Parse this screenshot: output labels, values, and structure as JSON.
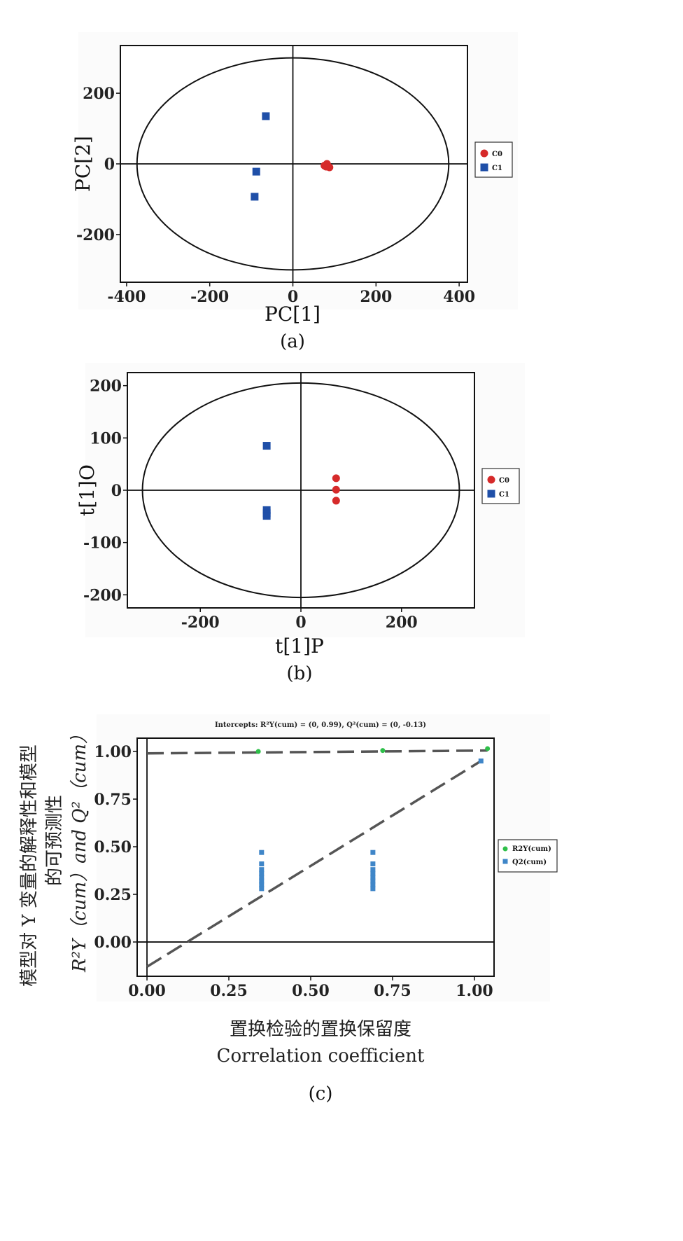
{
  "colors": {
    "c0": "#d62a2a",
    "c1": "#1f4fa8",
    "r2y": "#2fbf4a",
    "q2": "#3f86c8",
    "dash": "#555555"
  },
  "chart_data": [
    {
      "type": "scatter",
      "panel": "(a)",
      "xlabel": "PC[1]",
      "ylabel": "PC[2]",
      "xlim": [
        -415,
        420
      ],
      "ylim": [
        -335,
        335
      ],
      "xticks": [
        -400,
        -200,
        0,
        200,
        400
      ],
      "yticks": [
        200,
        0,
        -200
      ],
      "xtick_labels": [
        "-400",
        "-200",
        "0",
        "200",
        "400"
      ],
      "ytick_labels": [
        "200",
        "0",
        "-200"
      ],
      "ellipse": {
        "rx": 375,
        "ry": 300
      },
      "legend": [
        "C0",
        "C1"
      ],
      "series": [
        {
          "name": "C0",
          "marker": "circle",
          "points": [
            [
              76,
              -5
            ],
            [
              82,
              0
            ],
            [
              88,
              -10
            ],
            [
              80,
              -8
            ]
          ]
        },
        {
          "name": "C1",
          "marker": "square",
          "points": [
            [
              -65,
              135
            ],
            [
              -88,
              -22
            ],
            [
              -92,
              -93
            ]
          ]
        }
      ]
    },
    {
      "type": "scatter",
      "panel": "(b)",
      "xlabel": "t[1]P",
      "ylabel": "t[1]O",
      "xlim": [
        -345,
        345
      ],
      "ylim": [
        -225,
        225
      ],
      "xticks": [
        -200,
        0,
        200
      ],
      "yticks": [
        200,
        100,
        0,
        -100,
        -200
      ],
      "xtick_labels": [
        "-200",
        "0",
        "200"
      ],
      "ytick_labels": [
        "200",
        "100",
        "0",
        "-100",
        "-200"
      ],
      "ellipse": {
        "rx": 315,
        "ry": 205
      },
      "legend": [
        "C0",
        "C1"
      ],
      "series": [
        {
          "name": "C0",
          "marker": "circle",
          "points": [
            [
              70,
              23
            ],
            [
              70,
              1
            ],
            [
              70,
              -20
            ]
          ]
        },
        {
          "name": "C1",
          "marker": "square",
          "points": [
            [
              -68,
              85
            ],
            [
              -68,
              -38
            ],
            [
              -68,
              -44
            ],
            [
              -68,
              -49
            ]
          ]
        }
      ]
    },
    {
      "type": "scatter",
      "panel": "(c)",
      "title": "Intercepts: R²Y(cum) = (0, 0.99), Q²(cum) = (0, -0.13)",
      "xlabel_zh": "置换检验的置换保留度",
      "xlabel": "Correlation coefficient",
      "ylabel_zh_1": "模型对 Y 变量的解释性和模型",
      "ylabel_zh_2": "的可预测性",
      "ylabel": "R²Y（cum）and Q²（cum）",
      "xlim": [
        -0.03,
        1.06
      ],
      "ylim": [
        -0.18,
        1.07
      ],
      "xticks": [
        0.0,
        0.25,
        0.5,
        0.75,
        1.0
      ],
      "yticks": [
        1.0,
        0.75,
        0.5,
        0.25,
        0.0
      ],
      "xtick_labels": [
        "0.00",
        "0.25",
        "0.50",
        "0.75",
        "1.00"
      ],
      "ytick_labels": [
        "1.00",
        "0.75",
        "0.50",
        "0.25",
        "0.00"
      ],
      "legend": [
        "R2Y(cum)",
        "Q2(cum)"
      ],
      "series": [
        {
          "name": "R2Y(cum)",
          "marker": "circle",
          "points": [
            [
              0.34,
              1.0
            ],
            [
              0.72,
              1.005
            ],
            [
              1.04,
              1.015
            ]
          ]
        },
        {
          "name": "Q2(cum)",
          "marker": "square",
          "points": [
            [
              0.35,
              0.47
            ],
            [
              0.35,
              0.41
            ],
            [
              0.35,
              0.38
            ],
            [
              0.35,
              0.36
            ],
            [
              0.35,
              0.34
            ],
            [
              0.35,
              0.32
            ],
            [
              0.35,
              0.3
            ],
            [
              0.35,
              0.28
            ],
            [
              0.69,
              0.47
            ],
            [
              0.69,
              0.41
            ],
            [
              0.69,
              0.38
            ],
            [
              0.69,
              0.36
            ],
            [
              0.69,
              0.34
            ],
            [
              0.69,
              0.32
            ],
            [
              0.69,
              0.3
            ],
            [
              0.69,
              0.28
            ],
            [
              1.02,
              0.95
            ]
          ]
        }
      ],
      "regression_lines": [
        {
          "name": "R2Y(cum)",
          "from": [
            0.0,
            0.99
          ],
          "to": [
            1.04,
            1.005
          ]
        },
        {
          "name": "Q2(cum)",
          "from": [
            0.0,
            -0.13
          ],
          "to": [
            1.02,
            0.95
          ]
        }
      ]
    }
  ]
}
